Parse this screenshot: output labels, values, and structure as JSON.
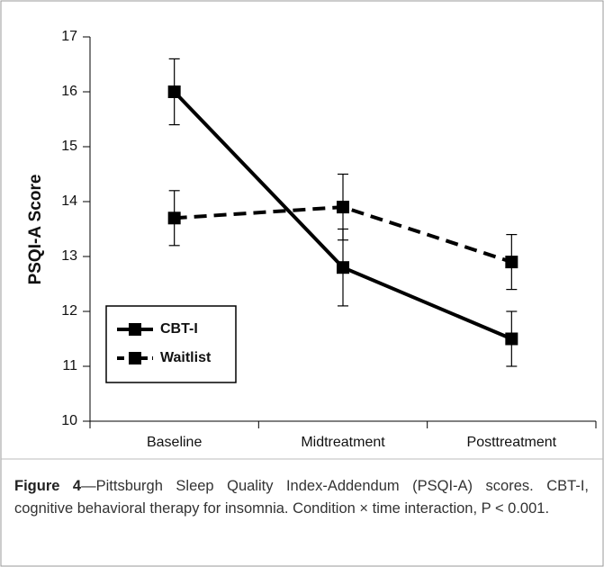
{
  "chart_data": {
    "type": "line",
    "y_label": "PSQI-A Score",
    "categories": [
      "Baseline",
      "Midtreatment",
      "Posttreatment"
    ],
    "series": [
      {
        "name": "CBT-I",
        "color": "#000000",
        "style": "solid",
        "values": [
          16.0,
          12.8,
          11.5
        ],
        "errors": [
          0.6,
          0.7,
          0.5
        ]
      },
      {
        "name": "Waitlist",
        "color": "#000000",
        "style": "dashed",
        "values": [
          13.7,
          13.9,
          12.9
        ],
        "errors": [
          0.5,
          0.6,
          0.5
        ]
      }
    ],
    "ylim": [
      10,
      17
    ],
    "yticks": [
      10,
      11,
      12,
      13,
      14,
      15,
      16,
      17
    ],
    "legend": "lower-left",
    "caption_label": "Figure 4",
    "caption": "—Pittsburgh Sleep Quality Index-Addendum (PSQI-A) scores. CBT-I, cognitive behavioral therapy for insomnia. Condition × time interaction, P < 0.001."
  }
}
